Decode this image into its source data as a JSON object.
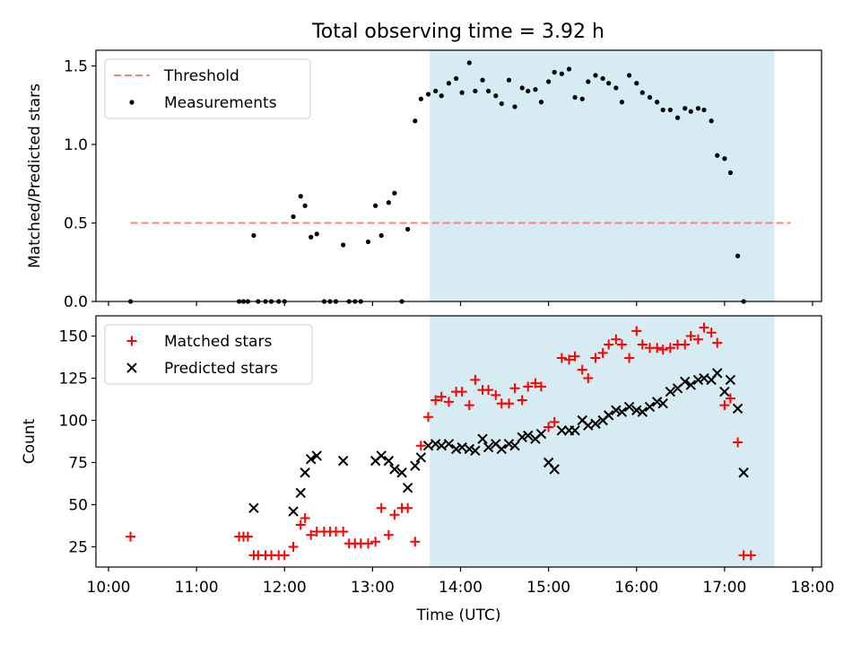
{
  "title": "Total observing time = 3.92 h",
  "colors": {
    "threshold": "#ff7f7f",
    "measurement": "#000000",
    "matched": "#ff0000",
    "predicted": "#000000",
    "shade": "#add8e6"
  },
  "chart_data": [
    {
      "type": "scatter",
      "ylabel": "Matched/Predicted stars",
      "xlim": [
        "10:00",
        "18:00"
      ],
      "ylim": [
        0,
        1.6
      ],
      "yticks": [
        "0.0",
        "0.5",
        "1.0",
        "1.5"
      ],
      "shaded_span": [
        "13:39",
        "17:34"
      ],
      "threshold": {
        "name": "Threshold",
        "y": 0.5,
        "x_range": [
          "10:15",
          "17:45"
        ]
      },
      "legend": {
        "location": "upper left",
        "entries": [
          "Threshold",
          "Measurements"
        ]
      },
      "series": [
        {
          "name": "Measurements",
          "points": [
            [
              "10:15",
              0.0
            ],
            [
              "11:29",
              0.0
            ],
            [
              "11:32",
              0.0
            ],
            [
              "11:35",
              0.0
            ],
            [
              "11:39",
              0.42
            ],
            [
              "11:42",
              0.0
            ],
            [
              "11:47",
              0.0
            ],
            [
              "11:51",
              0.0
            ],
            [
              "11:56",
              0.0
            ],
            [
              "12:00",
              0.0
            ],
            [
              "12:06",
              0.54
            ],
            [
              "12:11",
              0.67
            ],
            [
              "12:14",
              0.61
            ],
            [
              "12:18",
              0.41
            ],
            [
              "12:22",
              0.43
            ],
            [
              "12:27",
              0.0
            ],
            [
              "12:31",
              0.0
            ],
            [
              "12:35",
              0.0
            ],
            [
              "12:40",
              0.36
            ],
            [
              "12:44",
              0.0
            ],
            [
              "12:48",
              0.0
            ],
            [
              "12:52",
              0.0
            ],
            [
              "12:57",
              0.38
            ],
            [
              "13:02",
              0.61
            ],
            [
              "13:06",
              0.42
            ],
            [
              "13:11",
              0.63
            ],
            [
              "13:15",
              0.69
            ],
            [
              "13:20",
              0.0
            ],
            [
              "13:24",
              0.46
            ],
            [
              "13:29",
              1.15
            ],
            [
              "13:33",
              1.29
            ],
            [
              "13:38",
              1.32
            ],
            [
              "13:43",
              1.34
            ],
            [
              "13:47",
              1.31
            ],
            [
              "13:52",
              1.39
            ],
            [
              "13:57",
              1.42
            ],
            [
              "14:01",
              1.33
            ],
            [
              "14:06",
              1.52
            ],
            [
              "14:10",
              1.34
            ],
            [
              "14:15",
              1.41
            ],
            [
              "14:19",
              1.34
            ],
            [
              "14:24",
              1.31
            ],
            [
              "14:28",
              1.26
            ],
            [
              "14:33",
              1.41
            ],
            [
              "14:37",
              1.24
            ],
            [
              "14:42",
              1.36
            ],
            [
              "14:46",
              1.34
            ],
            [
              "14:51",
              1.35
            ],
            [
              "14:55",
              1.27
            ],
            [
              "15:00",
              1.4
            ],
            [
              "15:04",
              1.46
            ],
            [
              "15:09",
              1.45
            ],
            [
              "15:14",
              1.48
            ],
            [
              "15:18",
              1.3
            ],
            [
              "15:23",
              1.29
            ],
            [
              "15:27",
              1.4
            ],
            [
              "15:32",
              1.44
            ],
            [
              "15:37",
              1.42
            ],
            [
              "15:41",
              1.39
            ],
            [
              "15:46",
              1.36
            ],
            [
              "15:50",
              1.27
            ],
            [
              "15:55",
              1.44
            ],
            [
              "16:00",
              1.39
            ],
            [
              "16:04",
              1.33
            ],
            [
              "16:09",
              1.3
            ],
            [
              "16:14",
              1.27
            ],
            [
              "16:18",
              1.22
            ],
            [
              "16:23",
              1.22
            ],
            [
              "16:28",
              1.17
            ],
            [
              "16:33",
              1.23
            ],
            [
              "16:37",
              1.21
            ],
            [
              "16:42",
              1.23
            ],
            [
              "16:46",
              1.22
            ],
            [
              "16:51",
              1.15
            ],
            [
              "16:55",
              0.93
            ],
            [
              "17:00",
              0.91
            ],
            [
              "17:04",
              0.82
            ],
            [
              "17:09",
              0.29
            ],
            [
              "17:13",
              0.0
            ]
          ]
        }
      ]
    },
    {
      "type": "scatter",
      "ylabel": "Count",
      "xlabel": "Time (UTC)",
      "xlim": [
        "10:00",
        "18:00"
      ],
      "ylim": [
        13,
        162
      ],
      "yticks": [
        "25",
        "50",
        "75",
        "100",
        "125",
        "150"
      ],
      "xticks": [
        "10:00",
        "11:00",
        "12:00",
        "13:00",
        "14:00",
        "15:00",
        "16:00",
        "17:00",
        "18:00"
      ],
      "shaded_span": [
        "13:39",
        "17:34"
      ],
      "legend": {
        "location": "upper left",
        "entries": [
          "Matched stars",
          "Predicted stars"
        ]
      },
      "series": [
        {
          "name": "Matched stars",
          "points": [
            [
              "10:15",
              31
            ],
            [
              "11:29",
              31
            ],
            [
              "11:32",
              31
            ],
            [
              "11:35",
              31
            ],
            [
              "11:39",
              20
            ],
            [
              "11:42",
              20
            ],
            [
              "11:47",
              20
            ],
            [
              "11:51",
              20
            ],
            [
              "11:56",
              20
            ],
            [
              "12:00",
              20
            ],
            [
              "12:06",
              25
            ],
            [
              "12:11",
              38
            ],
            [
              "12:14",
              42
            ],
            [
              "12:18",
              32
            ],
            [
              "12:22",
              34
            ],
            [
              "12:27",
              34
            ],
            [
              "12:31",
              34
            ],
            [
              "12:35",
              34
            ],
            [
              "12:40",
              34
            ],
            [
              "12:44",
              27
            ],
            [
              "12:48",
              27
            ],
            [
              "12:52",
              27
            ],
            [
              "12:57",
              27
            ],
            [
              "13:02",
              28
            ],
            [
              "13:06",
              48
            ],
            [
              "13:11",
              32
            ],
            [
              "13:15",
              44
            ],
            [
              "13:20",
              48
            ],
            [
              "13:24",
              48
            ],
            [
              "13:29",
              28
            ],
            [
              "13:33",
              85
            ],
            [
              "13:38",
              102
            ],
            [
              "13:43",
              112
            ],
            [
              "13:47",
              114
            ],
            [
              "13:52",
              111
            ],
            [
              "13:57",
              117
            ],
            [
              "14:01",
              117
            ],
            [
              "14:06",
              109
            ],
            [
              "14:10",
              124
            ],
            [
              "14:15",
              118
            ],
            [
              "14:19",
              118
            ],
            [
              "14:24",
              115
            ],
            [
              "14:28",
              110
            ],
            [
              "14:33",
              110
            ],
            [
              "14:37",
              119
            ],
            [
              "14:42",
              112
            ],
            [
              "14:46",
              120
            ],
            [
              "14:51",
              122
            ],
            [
              "14:55",
              120
            ],
            [
              "15:00",
              96
            ],
            [
              "15:04",
              99
            ],
            [
              "15:09",
              137
            ],
            [
              "15:14",
              136
            ],
            [
              "15:18",
              138
            ],
            [
              "15:23",
              130
            ],
            [
              "15:27",
              125
            ],
            [
              "15:32",
              137
            ],
            [
              "15:37",
              140
            ],
            [
              "15:41",
              145
            ],
            [
              "15:46",
              148
            ],
            [
              "15:50",
              145
            ],
            [
              "15:55",
              137
            ],
            [
              "16:00",
              153
            ],
            [
              "16:04",
              145
            ],
            [
              "16:09",
              143
            ],
            [
              "16:14",
              143
            ],
            [
              "16:18",
              142
            ],
            [
              "16:23",
              143
            ],
            [
              "16:28",
              145
            ],
            [
              "16:33",
              145
            ],
            [
              "16:37",
              150
            ],
            [
              "16:42",
              148
            ],
            [
              "16:46",
              155
            ],
            [
              "16:51",
              152
            ],
            [
              "16:55",
              146
            ],
            [
              "17:00",
              109
            ],
            [
              "17:04",
              113
            ],
            [
              "17:09",
              87
            ],
            [
              "17:13",
              20
            ],
            [
              "17:18",
              20
            ]
          ]
        },
        {
          "name": "Predicted stars",
          "points": [
            [
              "11:39",
              48
            ],
            [
              "12:06",
              46
            ],
            [
              "12:11",
              57
            ],
            [
              "12:14",
              69
            ],
            [
              "12:18",
              77
            ],
            [
              "12:22",
              79
            ],
            [
              "12:40",
              76
            ],
            [
              "13:02",
              76
            ],
            [
              "13:06",
              79
            ],
            [
              "13:11",
              76
            ],
            [
              "13:15",
              71
            ],
            [
              "13:20",
              69
            ],
            [
              "13:24",
              60
            ],
            [
              "13:29",
              73
            ],
            [
              "13:33",
              78
            ],
            [
              "13:38",
              85
            ],
            [
              "13:43",
              86
            ],
            [
              "13:47",
              85
            ],
            [
              "13:52",
              86
            ],
            [
              "13:57",
              83
            ],
            [
              "14:01",
              84
            ],
            [
              "14:06",
              83
            ],
            [
              "14:10",
              82
            ],
            [
              "14:15",
              89
            ],
            [
              "14:19",
              84
            ],
            [
              "14:24",
              86
            ],
            [
              "14:28",
              83
            ],
            [
              "14:33",
              86
            ],
            [
              "14:37",
              85
            ],
            [
              "14:42",
              90
            ],
            [
              "14:46",
              91
            ],
            [
              "14:51",
              89
            ],
            [
              "14:55",
              92
            ],
            [
              "15:00",
              75
            ],
            [
              "15:04",
              71
            ],
            [
              "15:09",
              94
            ],
            [
              "15:14",
              94
            ],
            [
              "15:18",
              94
            ],
            [
              "15:23",
              100
            ],
            [
              "15:27",
              97
            ],
            [
              "15:32",
              98
            ],
            [
              "15:37",
              100
            ],
            [
              "15:41",
              103
            ],
            [
              "15:46",
              106
            ],
            [
              "15:50",
              105
            ],
            [
              "15:55",
              108
            ],
            [
              "16:00",
              106
            ],
            [
              "16:04",
              105
            ],
            [
              "16:09",
              108
            ],
            [
              "16:14",
              111
            ],
            [
              "16:18",
              110
            ],
            [
              "16:23",
              117
            ],
            [
              "16:28",
              119
            ],
            [
              "16:33",
              123
            ],
            [
              "16:37",
              121
            ],
            [
              "16:42",
              124
            ],
            [
              "16:46",
              125
            ],
            [
              "16:51",
              124
            ],
            [
              "16:55",
              128
            ],
            [
              "17:00",
              117
            ],
            [
              "17:04",
              124
            ],
            [
              "17:09",
              107
            ],
            [
              "17:13",
              69
            ]
          ]
        }
      ]
    }
  ]
}
